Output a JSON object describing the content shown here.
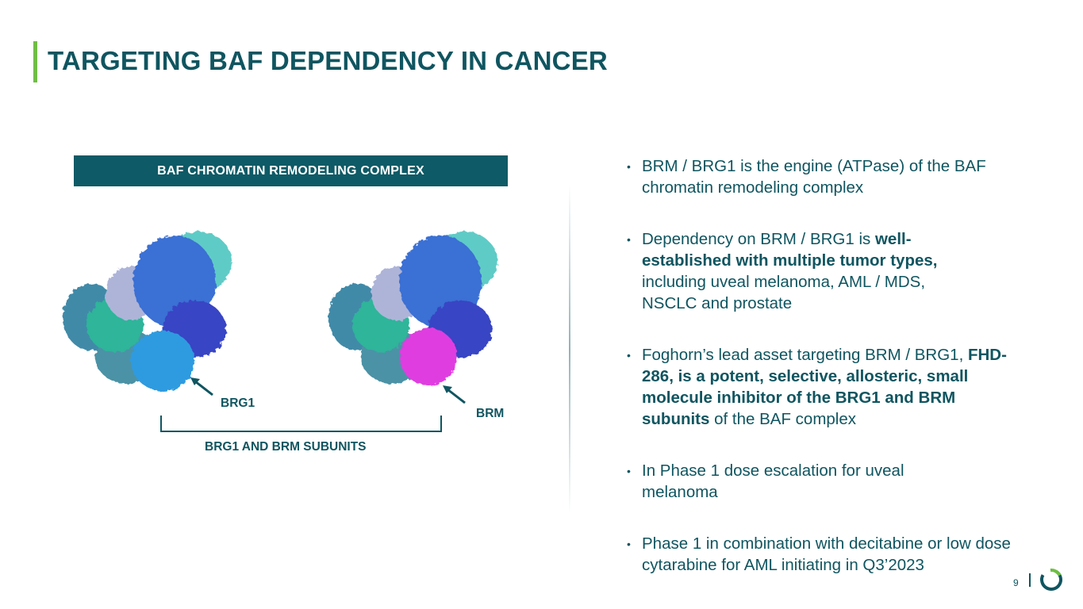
{
  "title": "TARGETING BAF DEPENDENCY IN CANCER",
  "complex_header": "BAF CHROMATIN REMODELING COMPLEX",
  "labels": {
    "brg1": "BRG1",
    "brm": "BRM",
    "subunits": "BRG1 AND BRM SUBUNITS"
  },
  "bullets": [
    {
      "parts": [
        {
          "text": "BRM / BRG1 is the engine (ATPase) of the BAF chromatin remodeling complex",
          "bold": false
        }
      ]
    },
    {
      "parts": [
        {
          "text": "Dependency on BRM / BRG1 is ",
          "bold": false
        },
        {
          "text": "well-established with multiple tumor types,",
          "bold": true
        },
        {
          "text": " including uveal melanoma, AML / MDS, NSCLC and prostate",
          "bold": false
        }
      ]
    },
    {
      "parts": [
        {
          "text": "Foghorn’s lead asset targeting BRM / BRG1, ",
          "bold": false
        },
        {
          "text": "FHD-286, is a potent, selective, allosteric, small molecule inhibitor of the BRG1 and BRM subunits",
          "bold": true
        },
        {
          "text": " of the BAF complex",
          "bold": false
        }
      ]
    },
    {
      "parts": [
        {
          "text": "In Phase 1 dose escalation for uveal melanoma",
          "bold": false
        }
      ]
    },
    {
      "parts": [
        {
          "text": "Phase 1 in combination with decitabine or low dose cytarabine for AML initiating in Q3’2023",
          "bold": false
        }
      ]
    }
  ],
  "page_number": "9",
  "colors": {
    "primary": "#0f5560",
    "accent_green": "#6fbe44",
    "brg1_highlight": "#2e9be0",
    "brm_highlight": "#e03ee0"
  },
  "icons": {
    "logo": "foghorn-ring-logo"
  }
}
